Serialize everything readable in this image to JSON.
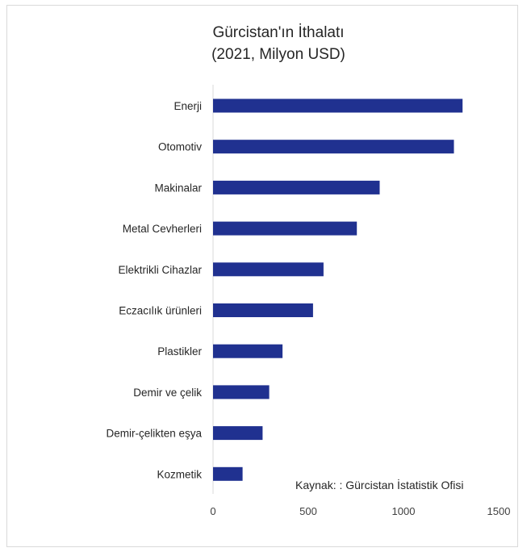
{
  "chart_data": {
    "type": "bar",
    "orientation": "horizontal",
    "title_lines": [
      "Gürcistan'ın İthalatı",
      "(2021, Milyon USD)"
    ],
    "categories": [
      "Enerji",
      "Otomotiv",
      "Makinalar",
      "Metal Cevherleri",
      "Elektrikli Cihazlar",
      "Eczacılık ürünleri",
      "Plastikler",
      "Demir ve çelik",
      "Demir-çelikten eşya",
      "Kozmetik"
    ],
    "values": [
      1310,
      1265,
      875,
      755,
      580,
      525,
      365,
      295,
      260,
      155
    ],
    "xlim": [
      0,
      1500
    ],
    "xticks": [
      "0",
      "500",
      "1000",
      "1500"
    ],
    "grid": false,
    "legend": "none",
    "bar_color": "#203190",
    "annotation": "Kaynak: : Gürcistan İstatistik Ofisi"
  }
}
